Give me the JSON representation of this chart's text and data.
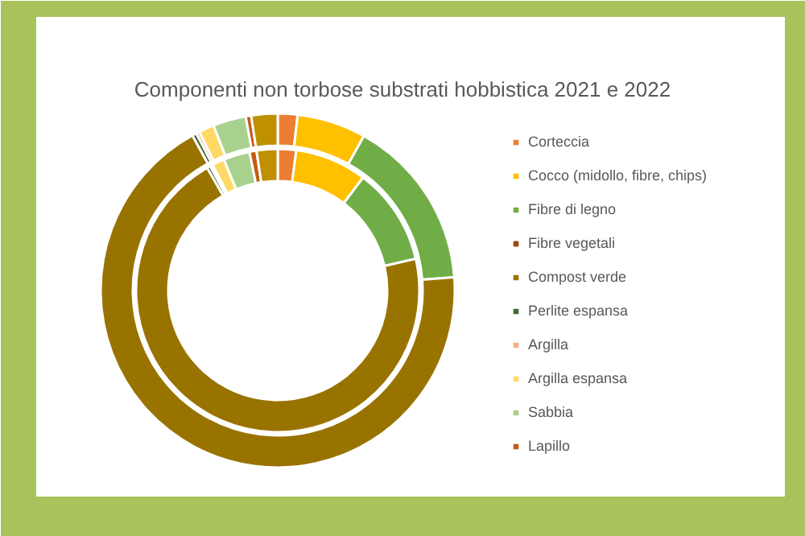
{
  "chart_data": {
    "type": "donut",
    "title": "Componenti non torbose substrati hobbistica 2021 e 2022",
    "categories": [
      "Corteccia",
      "Cocco (midollo, fibre, chips)",
      "Fibre di legno",
      "Fibre vegetali",
      "Compost verde",
      "Perlite espansa",
      "Argilla",
      "Argilla espansa",
      "Sabbia",
      "Lapillo",
      null
    ],
    "colors": [
      "#ed7d31",
      "#ffc000",
      "#70ad47",
      "#9e480e",
      "#997300",
      "#43682b",
      "#f4b183",
      "#ffd966",
      "#a9d18e",
      "#c55a11",
      "#bf9000"
    ],
    "series": [
      {
        "values": [
          1.8,
          6.3,
          15.7,
          null,
          68.2,
          0.4,
          0.3,
          1.4,
          3.0,
          0.5,
          2.4
        ]
      },
      {
        "values": [
          2.1,
          8.2,
          11.1,
          null,
          70.3,
          0.4,
          0.3,
          1.4,
          3.0,
          0.8,
          2.4
        ]
      }
    ],
    "legend": "right"
  }
}
